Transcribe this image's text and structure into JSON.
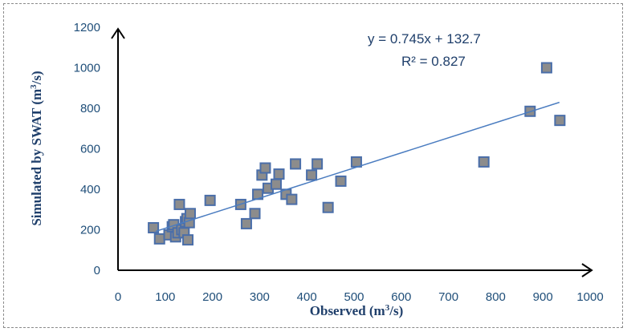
{
  "chart_data": {
    "type": "scatter",
    "xlabel": "Observed (m3/s)",
    "ylabel": "Simulated by SWAT (m3/s)",
    "xlim": [
      0,
      1000
    ],
    "ylim": [
      0,
      1200
    ],
    "x_ticks": [
      "0",
      "100",
      "200",
      "300",
      "400",
      "500",
      "600",
      "700",
      "800",
      "900",
      "1000"
    ],
    "y_ticks": [
      "0",
      "200",
      "400",
      "600",
      "800",
      "1000",
      "1200"
    ],
    "grid": false,
    "legend": "none",
    "marker_color": "#8c8c8c",
    "marker_edge_color": "#4a6ea9",
    "trendline_color": "#4a7cc0",
    "trendline": {
      "slope": 0.745,
      "intercept": 132.7,
      "x_range": [
        80,
        935
      ]
    },
    "equation": "y = 0.745x + 132.7",
    "r_squared": "R² = 0.827",
    "series": [
      {
        "points": [
          [
            75,
            210
          ],
          [
            88,
            155
          ],
          [
            108,
            175
          ],
          [
            115,
            215
          ],
          [
            118,
            225
          ],
          [
            122,
            165
          ],
          [
            127,
            185
          ],
          [
            130,
            325
          ],
          [
            135,
            200
          ],
          [
            140,
            185
          ],
          [
            143,
            240
          ],
          [
            146,
            255
          ],
          [
            148,
            150
          ],
          [
            151,
            235
          ],
          [
            153,
            280
          ],
          [
            195,
            345
          ],
          [
            260,
            325
          ],
          [
            272,
            230
          ],
          [
            290,
            280
          ],
          [
            296,
            375
          ],
          [
            305,
            470
          ],
          [
            312,
            505
          ],
          [
            318,
            405
          ],
          [
            335,
            425
          ],
          [
            341,
            475
          ],
          [
            356,
            375
          ],
          [
            368,
            350
          ],
          [
            376,
            525
          ],
          [
            410,
            470
          ],
          [
            422,
            525
          ],
          [
            445,
            310
          ],
          [
            472,
            440
          ],
          [
            505,
            535
          ],
          [
            775,
            535
          ],
          [
            873,
            785
          ],
          [
            908,
            1000
          ],
          [
            936,
            740
          ]
        ]
      }
    ]
  }
}
